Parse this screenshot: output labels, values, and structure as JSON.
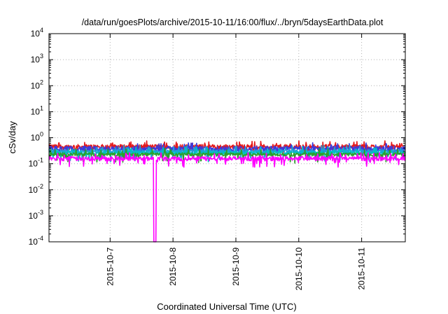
{
  "chart_data": {
    "type": "line",
    "title": "/data/run/goesPlots/archive/2015-10-11/16:00/flux/../bryn/5daysEarthData.plot",
    "xlabel": "Coordinated Universal Time (UTC)",
    "ylabel": "cSv/day",
    "y_scale": "log",
    "ylim": [
      0.0001,
      10000
    ],
    "y_ticks": [
      {
        "value": 10000,
        "base": "10",
        "exp": "4"
      },
      {
        "value": 1000,
        "base": "10",
        "exp": "3"
      },
      {
        "value": 100,
        "base": "10",
        "exp": "2"
      },
      {
        "value": 10,
        "base": "10",
        "exp": "1"
      },
      {
        "value": 1,
        "base": "10",
        "exp": "0"
      },
      {
        "value": 0.1,
        "base": "10",
        "exp": "-1"
      },
      {
        "value": 0.01,
        "base": "10",
        "exp": "-2"
      },
      {
        "value": 0.001,
        "base": "10",
        "exp": "-3"
      },
      {
        "value": 0.0001,
        "base": "10",
        "exp": "-4"
      }
    ],
    "xlim": [
      "2015-10-06T00:40",
      "2015-10-11T16:40"
    ],
    "x_ticks": [
      "2015-10-7",
      "2015-10-8",
      "2015-10-9",
      "2015-10-10",
      "2015-10-11"
    ],
    "grid": true,
    "legend": "none",
    "series": [
      {
        "color": "#e41a1c",
        "baseline": 0.45,
        "spread": 0.28
      },
      {
        "color": "#3b3bdc",
        "baseline": 0.38,
        "spread": 0.3
      },
      {
        "color": "#1f9fd6",
        "baseline": 0.3,
        "spread": 0.22
      },
      {
        "color": "#00bfc4",
        "baseline": 0.26,
        "spread": 0.2
      },
      {
        "color": "#2ca02c",
        "baseline": 0.23,
        "spread": 0.18
      },
      {
        "color": "#ff00ff",
        "baseline": 0.16,
        "spread": 0.25,
        "dropout": {
          "start": "2015-10-07T16:30",
          "end": "2015-10-07T17:30",
          "min": 0.0001
        }
      }
    ]
  }
}
